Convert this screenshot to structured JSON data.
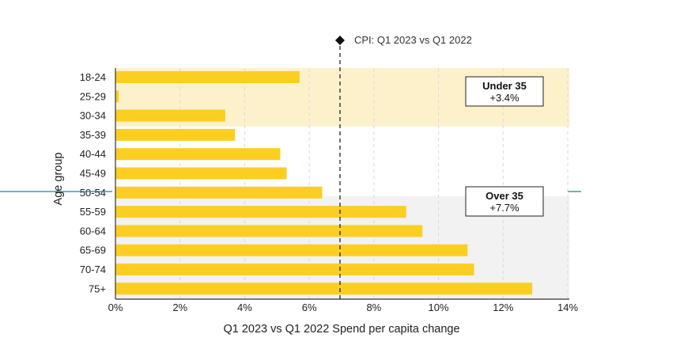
{
  "chart_data": {
    "type": "bar",
    "orientation": "horizontal",
    "categories": [
      "18-24",
      "25-29",
      "30-34",
      "35-39",
      "40-44",
      "45-49",
      "50-54",
      "55-59",
      "60-64",
      "65-69",
      "70-74",
      "75+"
    ],
    "values": [
      5.7,
      0.1,
      3.4,
      3.7,
      5.1,
      5.3,
      6.4,
      9.0,
      9.5,
      10.9,
      11.1,
      12.9
    ],
    "xlabel": "Q1 2023 vs Q1 2022 Spend per capita change",
    "ylabel": "Age group",
    "xlim": [
      0,
      14
    ],
    "x_ticks": [
      0,
      2,
      4,
      6,
      8,
      10,
      12,
      14
    ],
    "x_tick_labels": [
      "0%",
      "2%",
      "4%",
      "6%",
      "8%",
      "10%",
      "12%",
      "14%"
    ],
    "grid": "vertical dashed",
    "reference_line": {
      "label": "CPI: Q1 2023 vs Q1 2022",
      "value": 6.95
    },
    "groups": [
      {
        "title": "Under 35",
        "value": "+3.4%",
        "categories": [
          "18-24",
          "25-29",
          "30-34"
        ]
      },
      {
        "title": "Over 35",
        "value": "+7.7%",
        "categories": [
          "35-39",
          "40-44",
          "45-49",
          "50-54",
          "55-59",
          "60-64",
          "65-69",
          "70-74",
          "75+"
        ]
      }
    ],
    "colors": {
      "bar": "#FCCE22",
      "under35_band": "#FDF1CC",
      "over35_band": "#F2F2F2",
      "accent_line": "#2A7F98"
    }
  }
}
